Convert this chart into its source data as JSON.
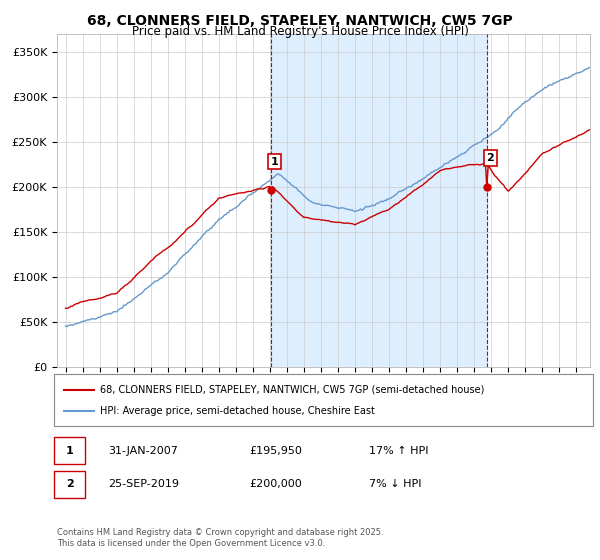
{
  "title": "68, CLONNERS FIELD, STAPELEY, NANTWICH, CW5 7GP",
  "subtitle": "Price paid vs. HM Land Registry's House Price Index (HPI)",
  "legend_line1": "68, CLONNERS FIELD, STAPELEY, NANTWICH, CW5 7GP (semi-detached house)",
  "legend_line2": "HPI: Average price, semi-detached house, Cheshire East",
  "footnote": "Contains HM Land Registry data © Crown copyright and database right 2025.\nThis data is licensed under the Open Government Licence v3.0.",
  "transaction1_label": "1",
  "transaction1_date": "31-JAN-2007",
  "transaction1_price": "£195,950",
  "transaction1_hpi": "17% ↑ HPI",
  "transaction1_date_x": 2007.08,
  "transaction1_price_y": 195950,
  "transaction2_label": "2",
  "transaction2_date": "25-SEP-2019",
  "transaction2_price": "£200,000",
  "transaction2_hpi": "7% ↓ HPI",
  "transaction2_date_x": 2019.75,
  "transaction2_price_y": 200000,
  "house_color": "#cc0000",
  "hpi_color": "#6699cc",
  "shade_color": "#ddeeff",
  "ylim": [
    0,
    370000
  ],
  "yticks": [
    0,
    50000,
    100000,
    150000,
    200000,
    250000,
    300000,
    350000
  ],
  "ytick_labels": [
    "£0",
    "£50K",
    "£100K",
    "£150K",
    "£200K",
    "£250K",
    "£300K",
    "£350K"
  ],
  "xlim_start": 1994.5,
  "xlim_end": 2025.8
}
